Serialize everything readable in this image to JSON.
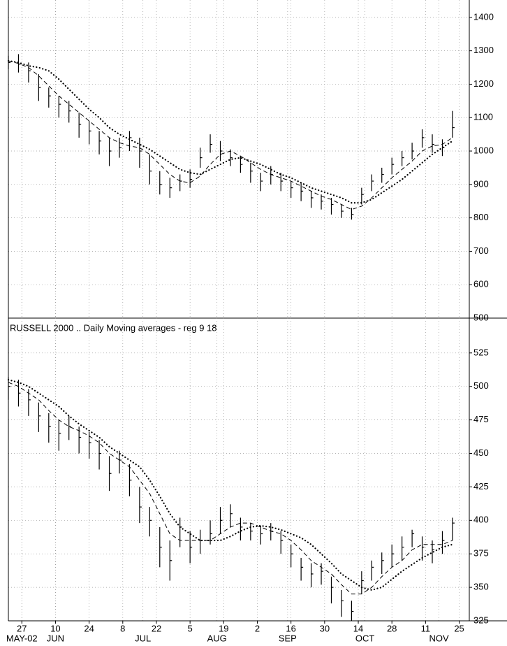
{
  "chart_data": [
    {
      "type": "ohlc",
      "x": [
        0,
        3,
        6,
        9,
        12,
        15,
        18,
        21,
        24,
        27,
        30,
        33,
        36,
        39,
        42,
        45,
        48,
        51,
        54,
        57,
        60,
        63,
        66,
        69,
        72,
        75,
        78,
        81,
        84,
        87,
        90,
        93,
        96,
        99,
        102,
        105,
        108,
        111,
        114,
        117,
        120,
        123,
        126,
        129,
        132
      ],
      "high": [
        1285,
        1290,
        1265,
        1230,
        1190,
        1165,
        1150,
        1115,
        1090,
        1060,
        1040,
        1040,
        1060,
        1040,
        990,
        940,
        920,
        930,
        945,
        1010,
        1050,
        1030,
        1005,
        985,
        965,
        935,
        955,
        935,
        910,
        905,
        880,
        870,
        860,
        840,
        830,
        890,
        930,
        950,
        980,
        1000,
        1025,
        1065,
        1050,
        1035,
        1120
      ],
      "low": [
        1245,
        1235,
        1205,
        1150,
        1130,
        1100,
        1085,
        1040,
        1020,
        990,
        955,
        980,
        1000,
        950,
        900,
        870,
        860,
        880,
        890,
        950,
        995,
        970,
        955,
        935,
        905,
        880,
        900,
        880,
        860,
        850,
        830,
        825,
        810,
        800,
        795,
        840,
        880,
        905,
        930,
        955,
        975,
        1010,
        995,
        985,
        1040
      ],
      "close": [
        1265,
        1260,
        1240,
        1190,
        1165,
        1140,
        1120,
        1080,
        1060,
        1030,
        1000,
        1010,
        1040,
        1000,
        940,
        900,
        890,
        910,
        915,
        980,
        1020,
        1000,
        980,
        960,
        940,
        910,
        930,
        910,
        890,
        880,
        860,
        850,
        840,
        820,
        810,
        870,
        910,
        930,
        960,
        980,
        1000,
        1040,
        1020,
        1010,
        1070
      ],
      "series": [
        {
          "style": "dashed",
          "values": [
            1270,
            1262,
            1250,
            1225,
            1195,
            1165,
            1140,
            1115,
            1090,
            1065,
            1040,
            1025,
            1015,
            1010,
            990,
            960,
            930,
            910,
            905,
            925,
            960,
            990,
            1000,
            985,
            965,
            945,
            930,
            920,
            910,
            895,
            880,
            865,
            855,
            840,
            825,
            835,
            860,
            890,
            920,
            945,
            970,
            1000,
            1015,
            1020,
            1040
          ]
        },
        {
          "style": "dotted",
          "values": [
            1270,
            1265,
            1255,
            1250,
            1240,
            1215,
            1185,
            1155,
            1125,
            1100,
            1070,
            1050,
            1035,
            1020,
            1005,
            985,
            965,
            945,
            935,
            930,
            945,
            960,
            975,
            980,
            970,
            960,
            945,
            930,
            920,
            905,
            890,
            880,
            870,
            860,
            845,
            845,
            855,
            875,
            895,
            915,
            940,
            965,
            990,
            1010,
            1030
          ]
        }
      ],
      "color": "#000000",
      "xlim": [
        0,
        137
      ],
      "ylim": [
        500,
        1452
      ],
      "yticks": [
        500,
        600,
        700,
        800,
        900,
        1000,
        1100,
        1200,
        1300,
        1400
      ],
      "grid": true
    },
    {
      "type": "ohlc",
      "title": "RUSSELL 2000 .. Daily Moving averages - reg 9 18",
      "x": [
        0,
        3,
        6,
        9,
        12,
        15,
        18,
        21,
        24,
        27,
        30,
        33,
        36,
        39,
        42,
        45,
        48,
        51,
        54,
        57,
        60,
        63,
        66,
        69,
        72,
        75,
        78,
        81,
        84,
        87,
        90,
        93,
        96,
        99,
        102,
        105,
        108,
        111,
        114,
        117,
        120,
        123,
        126,
        129,
        132
      ],
      "high": [
        507,
        505,
        498,
        488,
        480,
        475,
        478,
        470,
        466,
        460,
        448,
        452,
        442,
        425,
        410,
        395,
        385,
        402,
        392,
        393,
        400,
        410,
        412,
        402,
        398,
        396,
        398,
        392,
        382,
        372,
        368,
        368,
        358,
        348,
        340,
        362,
        370,
        376,
        382,
        388,
        393,
        388,
        385,
        392,
        402
      ],
      "low": [
        490,
        485,
        478,
        466,
        458,
        452,
        460,
        450,
        446,
        438,
        422,
        435,
        418,
        398,
        388,
        365,
        355,
        380,
        368,
        375,
        382,
        390,
        395,
        385,
        385,
        382,
        385,
        375,
        365,
        355,
        350,
        352,
        338,
        328,
        325,
        345,
        355,
        360,
        365,
        370,
        380,
        370,
        368,
        375,
        385
      ],
      "close": [
        500,
        495,
        490,
        478,
        470,
        465,
        470,
        462,
        458,
        450,
        435,
        445,
        430,
        410,
        400,
        380,
        370,
        395,
        380,
        385,
        390,
        400,
        405,
        395,
        392,
        390,
        392,
        385,
        375,
        365,
        360,
        362,
        350,
        340,
        332,
        355,
        365,
        370,
        375,
        380,
        390,
        380,
        378,
        385,
        398
      ],
      "series": [
        {
          "style": "dashed",
          "values": [
            503,
            500,
            495,
            490,
            482,
            475,
            470,
            467,
            463,
            458,
            450,
            445,
            440,
            430,
            420,
            405,
            390,
            385,
            385,
            385,
            385,
            390,
            395,
            398,
            398,
            395,
            392,
            390,
            385,
            378,
            370,
            365,
            360,
            352,
            345,
            345,
            350,
            358,
            365,
            370,
            378,
            382,
            382,
            382,
            385
          ]
        },
        {
          "style": "dotted",
          "values": [
            505,
            503,
            500,
            495,
            490,
            485,
            478,
            472,
            467,
            462,
            455,
            450,
            445,
            440,
            430,
            418,
            405,
            395,
            390,
            385,
            385,
            385,
            388,
            392,
            395,
            396,
            395,
            393,
            390,
            387,
            382,
            375,
            368,
            360,
            355,
            350,
            348,
            350,
            356,
            362,
            367,
            372,
            376,
            380,
            382
          ]
        }
      ],
      "color": "#000000",
      "xlim": [
        0,
        137
      ],
      "ylim": [
        325,
        551
      ],
      "yticks": [
        325,
        350,
        375,
        400,
        425,
        450,
        475,
        500,
        525
      ],
      "xticks": [
        {
          "value": 4,
          "label": "27"
        },
        {
          "value": 14,
          "label": "10"
        },
        {
          "value": 24,
          "label": "24"
        },
        {
          "value": 34,
          "label": "8"
        },
        {
          "value": 44,
          "label": "22"
        },
        {
          "value": 54,
          "label": "5"
        },
        {
          "value": 64,
          "label": "19"
        },
        {
          "value": 74,
          "label": "2"
        },
        {
          "value": 84,
          "label": "16"
        },
        {
          "value": 94,
          "label": "30"
        },
        {
          "value": 104,
          "label": "14"
        },
        {
          "value": 114,
          "label": "28"
        },
        {
          "value": 124,
          "label": "11"
        },
        {
          "value": 134,
          "label": "25"
        }
      ],
      "month_ticks": [
        {
          "value": 4,
          "label": "MAY-02"
        },
        {
          "value": 14,
          "label": "JUN"
        },
        {
          "value": 40,
          "label": "JUL"
        },
        {
          "value": 62,
          "label": "AUG"
        },
        {
          "value": 83,
          "label": "SEP"
        },
        {
          "value": 106,
          "label": "OCT"
        },
        {
          "value": 128,
          "label": "NOV"
        }
      ],
      "grid": true
    }
  ]
}
